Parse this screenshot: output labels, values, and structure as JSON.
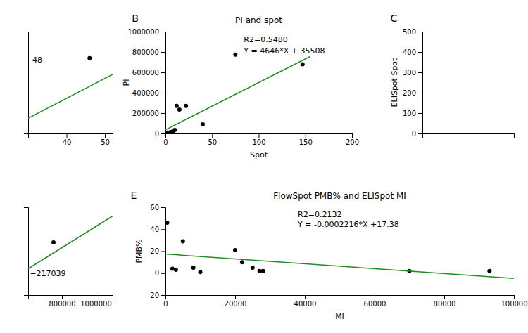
{
  "chart_data": [
    {
      "type": "scatter",
      "xlim": [
        30,
        52
      ],
      "ylim": [
        0,
        1000000
      ],
      "xticks": [
        40,
        50
      ],
      "tick_labels": "x",
      "annotations": [
        "48"
      ],
      "series": [
        {
          "type": "scatter",
          "color": "#000000",
          "x": [
            46
          ],
          "values": [
            740000
          ]
        },
        {
          "type": "line",
          "color": "#228B22",
          "x": [
            30,
            52
          ],
          "values": [
            150000,
            580000
          ]
        }
      ]
    },
    {
      "type": "scatter",
      "title": "PI and spot",
      "xlabel": "Spot",
      "ylabel": "PI",
      "panel_label": "B",
      "xlim": [
        0,
        200
      ],
      "ylim": [
        0,
        1000000
      ],
      "xticks": [
        0,
        50,
        100,
        150,
        200
      ],
      "yticks": [
        0,
        200000,
        400000,
        600000,
        800000,
        1000000
      ],
      "annotations": [
        "R2=0.5480",
        "Y = 4646*X + 35508"
      ],
      "series": [
        {
          "type": "scatter",
          "color": "#000000",
          "x": [
            2,
            3,
            5,
            7,
            8,
            10,
            12,
            15,
            22,
            40,
            75,
            147
          ],
          "values": [
            8000,
            5000,
            12000,
            18000,
            10000,
            35000,
            270000,
            235000,
            270000,
            90000,
            775000,
            680000
          ]
        },
        {
          "type": "line",
          "color": "#228B22",
          "x": [
            0,
            155
          ],
          "values": [
            35508,
            755018
          ]
        }
      ]
    },
    {
      "type": "scatter",
      "ylabel": "ELISpot Spot",
      "panel_label": "C",
      "xlim": [
        0,
        10
      ],
      "ylim": [
        0,
        500
      ],
      "yticks": [
        0,
        100,
        200,
        300,
        400,
        500
      ],
      "tick_labels": "y",
      "series": []
    },
    {
      "type": "scatter",
      "xlim": [
        600000,
        1100000
      ],
      "ylim": [
        0,
        1000000
      ],
      "xticks": [
        800000,
        1000000
      ],
      "tick_labels": "x",
      "annotations": [
        "−217039"
      ],
      "series": [
        {
          "type": "scatter",
          "color": "#000000",
          "x": [
            750000
          ],
          "values": [
            600000
          ]
        },
        {
          "type": "line",
          "color": "#228B22",
          "x": [
            600000,
            1100000
          ],
          "values": [
            300000,
            900000
          ]
        }
      ]
    },
    {
      "type": "scatter",
      "title": "FlowSpot PMB% and ELISpot MI",
      "xlabel": "MI",
      "ylabel": "PMB%",
      "panel_label": "E",
      "xlim": [
        0,
        100000
      ],
      "ylim": [
        -20,
        60
      ],
      "xticks": [
        0,
        20000,
        40000,
        60000,
        80000,
        100000
      ],
      "yticks": [
        -20,
        0,
        20,
        40,
        60
      ],
      "annotations": [
        "R2=0.2132",
        "Y = -0.0002216*X +17.38"
      ],
      "series": [
        {
          "type": "scatter",
          "color": "#000000",
          "x": [
            500,
            2000,
            3000,
            5000,
            8000,
            10000,
            20000,
            22000,
            25000,
            27000,
            28000,
            70000,
            93000
          ],
          "values": [
            46,
            4,
            3,
            29,
            5,
            1,
            21,
            10,
            5,
            2,
            2,
            2,
            2
          ]
        },
        {
          "type": "line",
          "color": "#228B22",
          "x": [
            0,
            100000
          ],
          "values": [
            17.38,
            -4.78
          ]
        }
      ]
    }
  ]
}
